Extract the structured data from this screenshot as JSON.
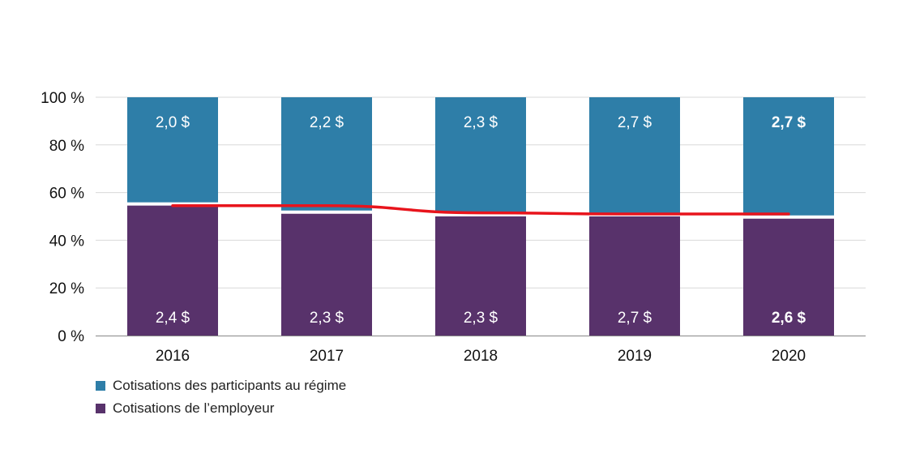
{
  "chart_data": {
    "type": "bar",
    "stacked": "percent",
    "categories": [
      "2016",
      "2017",
      "2018",
      "2019",
      "2020"
    ],
    "series": [
      {
        "name": "Cotisations de l’employeur",
        "values": [
          2.4,
          2.3,
          2.3,
          2.7,
          2.6
        ],
        "labels": [
          "2,4 $",
          "2,3 $",
          "2,3 $",
          "2,7 $",
          "2,6 $"
        ],
        "color": "#58326b"
      },
      {
        "name": "Cotisations des participants au régime",
        "values": [
          2.0,
          2.2,
          2.3,
          2.7,
          2.7
        ],
        "labels": [
          "2,0 $",
          "2,2 $",
          "2,3 $",
          "2,7 $",
          "2,7 $"
        ],
        "color": "#2e7ea8"
      }
    ],
    "line": {
      "values": [
        54.5,
        54.5,
        51.5,
        51.0,
        51.0
      ],
      "color": "#e8141c"
    },
    "bold_category": "2020",
    "yticks": [
      "0 %",
      "20 %",
      "40 %",
      "60 %",
      "80 %",
      "100 %"
    ],
    "ylim": [
      0,
      100
    ],
    "grid": true,
    "legend_position": "bottom-left"
  }
}
